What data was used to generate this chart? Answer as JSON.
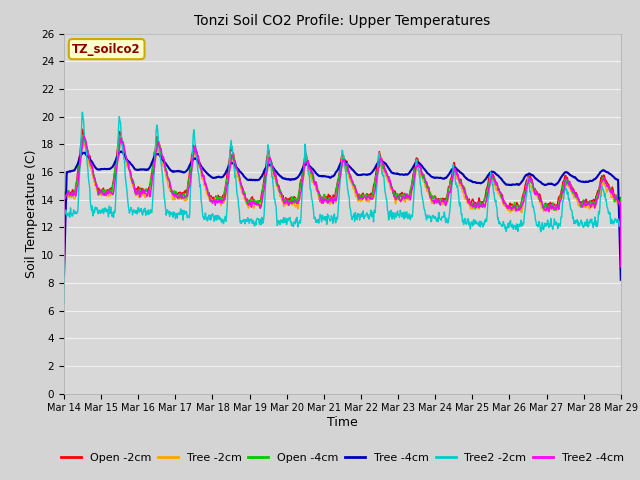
{
  "title": "Tonzi Soil CO2 Profile: Upper Temperatures",
  "xlabel": "Time",
  "ylabel": "Soil Temperature (C)",
  "ylim": [
    0,
    26
  ],
  "yticks": [
    0,
    2,
    4,
    6,
    8,
    10,
    12,
    14,
    16,
    18,
    20,
    22,
    24,
    26
  ],
  "series": [
    {
      "label": "Open -2cm",
      "color": "#ff0000",
      "lw": 1.0
    },
    {
      "label": "Tree -2cm",
      "color": "#ffa500",
      "lw": 1.0
    },
    {
      "label": "Open -4cm",
      "color": "#00cc00",
      "lw": 1.0
    },
    {
      "label": "Tree -4cm",
      "color": "#0000bb",
      "lw": 1.5
    },
    {
      "label": "Tree2 -2cm",
      "color": "#00cccc",
      "lw": 1.0
    },
    {
      "label": "Tree2 -4cm",
      "color": "#ff00ff",
      "lw": 1.0
    }
  ],
  "xtick_labels": [
    "Mar 14",
    "Mar 15",
    "Mar 16",
    "Mar 17",
    "Mar 18",
    "Mar 19",
    "Mar 20",
    "Mar 21",
    "Mar 22",
    "Mar 23",
    "Mar 24",
    "Mar 25",
    "Mar 26",
    "Mar 27",
    "Mar 28",
    "Mar 29"
  ],
  "fig_bg": "#d4d4d4",
  "plot_bg": "#d8d8d8",
  "grid_color": "#f0f0f0",
  "annotation_text": "TZ_soilco2",
  "annotation_color": "#8b0000",
  "annotation_bg": "#ffffcc",
  "annotation_border": "#ccaa00"
}
